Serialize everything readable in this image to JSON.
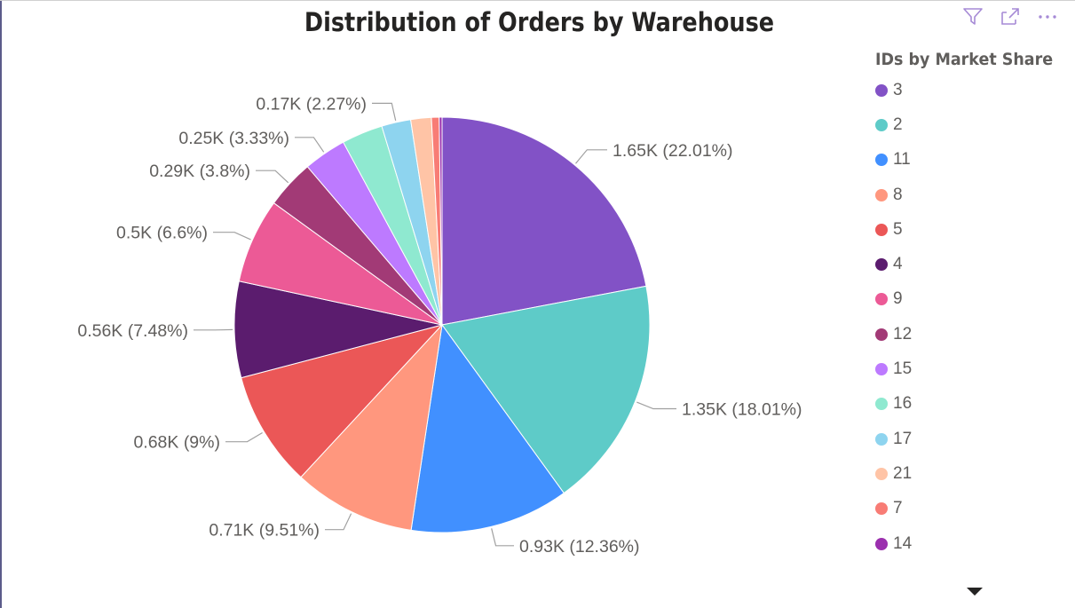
{
  "chart_data": {
    "type": "pie",
    "title": "Distribution of Orders by Warehouse",
    "legend_title": "IDs by Market Share",
    "legend_position": "right",
    "slices": [
      {
        "id": "3",
        "value": 1.65,
        "percent": 22.01,
        "label": "1.65K (22.01%)",
        "color": "#8252c6"
      },
      {
        "id": "2",
        "value": 1.35,
        "percent": 18.01,
        "label": "1.35K (18.01%)",
        "color": "#5ecbc8"
      },
      {
        "id": "11",
        "value": 0.93,
        "percent": 12.36,
        "label": "0.93K (12.36%)",
        "color": "#4190ff"
      },
      {
        "id": "8",
        "value": 0.71,
        "percent": 9.51,
        "label": "0.71K (9.51%)",
        "color": "#ff977e"
      },
      {
        "id": "5",
        "value": 0.68,
        "percent": 9.0,
        "label": "0.68K (9%)",
        "color": "#eb5757"
      },
      {
        "id": "4",
        "value": 0.56,
        "percent": 7.48,
        "label": "0.56K (7.48%)",
        "color": "#5b1c6e"
      },
      {
        "id": "9",
        "value": 0.5,
        "percent": 6.6,
        "label": "0.5K (6.6%)",
        "color": "#ec5a96"
      },
      {
        "id": "12",
        "value": 0.29,
        "percent": 3.8,
        "label": "0.29K (3.8%)",
        "color": "#a23a76"
      },
      {
        "id": "15",
        "value": 0.25,
        "percent": 3.33,
        "label": "0.25K (3.33%)",
        "color": "#bd7aff"
      },
      {
        "id": "16",
        "value": 0.24,
        "percent": 3.2,
        "label": "",
        "color": "#8fe9d0"
      },
      {
        "id": "17",
        "value": 0.17,
        "percent": 2.27,
        "label": "0.17K (2.27%)",
        "color": "#8ed4ef"
      },
      {
        "id": "21",
        "value": 0.12,
        "percent": 1.6,
        "label": "",
        "color": "#ffc4a6"
      },
      {
        "id": "7",
        "value": 0.05,
        "percent": 0.6,
        "label": "",
        "color": "#f87c75"
      },
      {
        "id": "14",
        "value": 0.02,
        "percent": 0.22,
        "label": "",
        "color": "#9b2fae"
      }
    ]
  },
  "toolbar": {
    "filter_icon": "filter-icon",
    "focus_icon": "focus-mode-icon",
    "more_icon": "more-options-icon",
    "icon_color": "#a68ad6"
  }
}
